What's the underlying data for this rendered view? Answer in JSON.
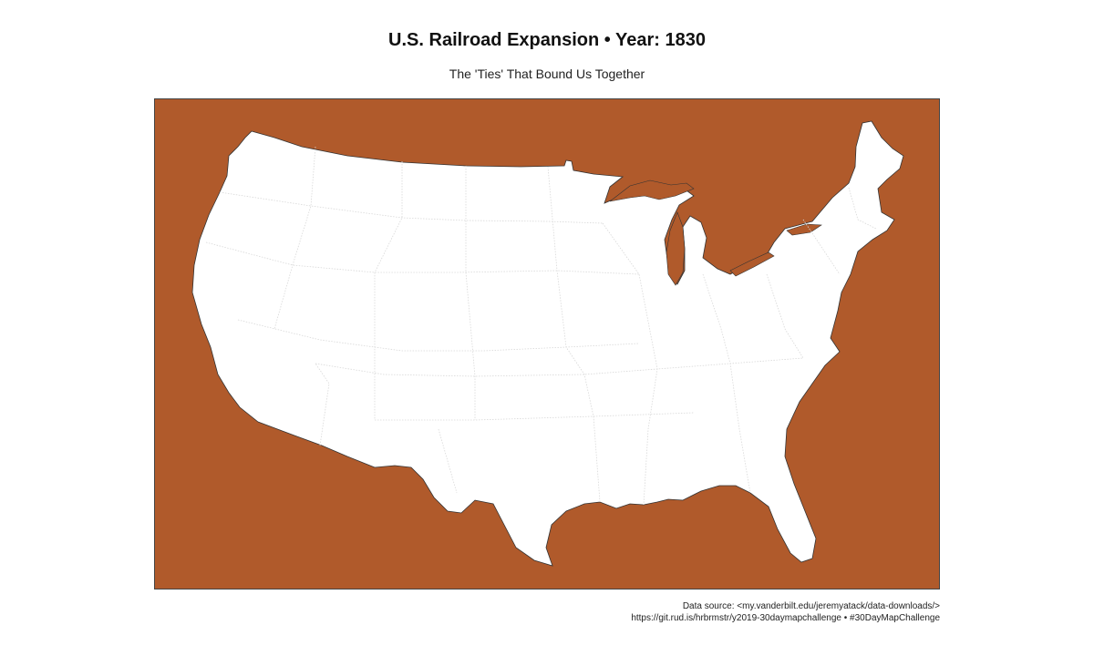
{
  "title": "U.S. Railroad Expansion • Year: 1830",
  "subtitle": "The 'Ties' That Bound Us Together",
  "caption": {
    "line1": "Data source: <my.vanderbilt.edu/jeremyatack/data-downloads/>",
    "line2": "https://git.rud.is/hrbrmstr/y2019-30daymapchallenge • #30DayMapChallenge"
  },
  "colors": {
    "background": "#B05A2B",
    "land": "#FFFFFF",
    "state_borders": "#D8D8D8",
    "coastline": "#333333"
  },
  "map": {
    "region": "Contiguous United States",
    "year": 1830
  }
}
